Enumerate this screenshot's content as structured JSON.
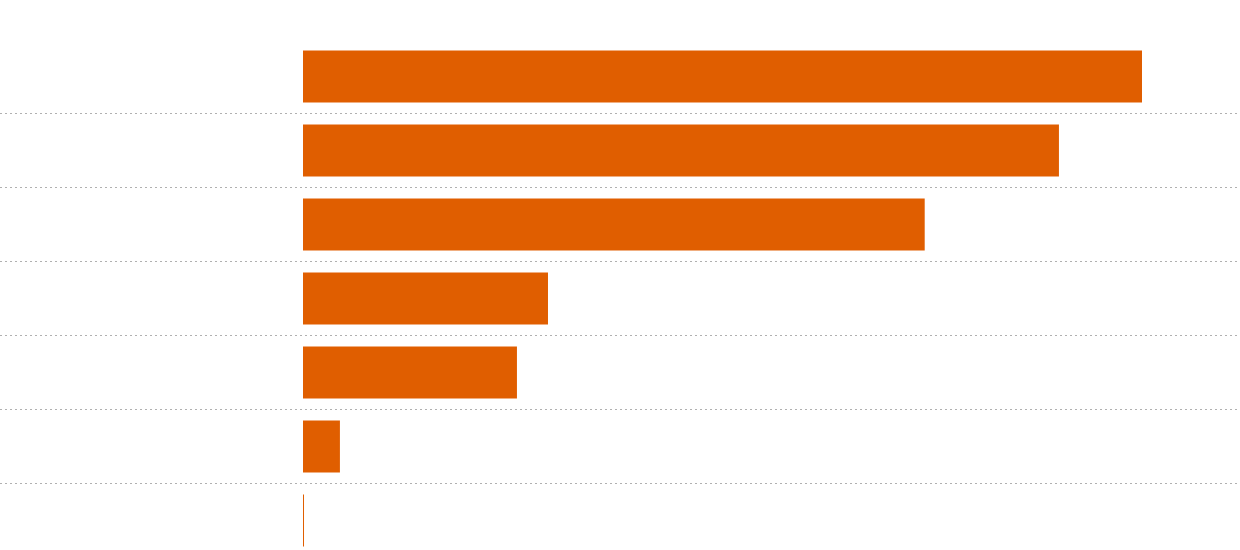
{
  "chart_data": {
    "type": "hbar",
    "categories": [
      null,
      null,
      null,
      null,
      null,
      null,
      null
    ],
    "values": [
      100,
      90.1,
      74.1,
      29.2,
      25.5,
      4.4,
      0.12
    ],
    "color": "#e05e00",
    "xlim": [
      0,
      100
    ]
  }
}
